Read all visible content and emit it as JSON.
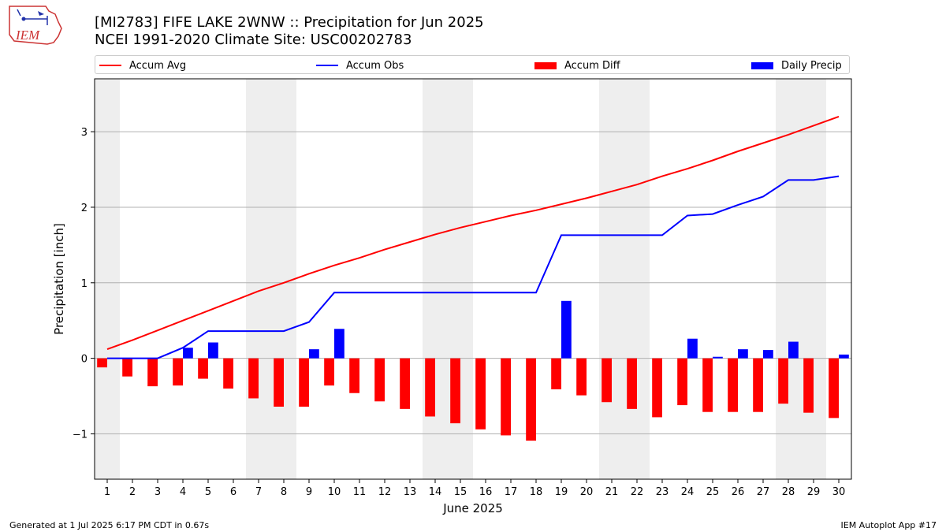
{
  "header": {
    "title": "[MI2783] FIFE LAKE 2WNW :: Precipitation for Jun 2025",
    "subtitle": "NCEI 1991-2020 Climate Site: USC00202783",
    "logo_text": "IEM"
  },
  "legend": [
    {
      "label": "Accum Avg",
      "kind": "line",
      "color": "#ff0000"
    },
    {
      "label": "Accum Obs",
      "kind": "line",
      "color": "#0000ff"
    },
    {
      "label": "Accum Diff",
      "kind": "bar",
      "color": "#ff0000"
    },
    {
      "label": "Daily Precip",
      "kind": "bar",
      "color": "#0000ff"
    }
  ],
  "chart_data": {
    "type": "bar",
    "xlabel": "June 2025",
    "ylabel": "Precipitation [inch]",
    "ylim": [
      -1.6,
      3.7
    ],
    "yticks": [
      -1,
      0,
      1,
      2,
      3
    ],
    "ytick_labels": [
      "−1",
      "0",
      "1",
      "2",
      "3"
    ],
    "grid": true,
    "weekend_shading": true,
    "weekend_days": [
      1,
      7,
      8,
      14,
      15,
      21,
      22,
      28,
      29
    ],
    "categories": [
      "1",
      "2",
      "3",
      "4",
      "5",
      "6",
      "7",
      "8",
      "9",
      "10",
      "11",
      "12",
      "13",
      "14",
      "15",
      "16",
      "17",
      "18",
      "19",
      "20",
      "21",
      "22",
      "23",
      "24",
      "25",
      "26",
      "27",
      "28",
      "29",
      "30"
    ],
    "series": [
      {
        "name": "Accum Avg",
        "type": "line",
        "color": "#ff0000",
        "values": [
          0.12,
          0.24,
          0.37,
          0.5,
          0.63,
          0.76,
          0.89,
          1.0,
          1.12,
          1.23,
          1.33,
          1.44,
          1.54,
          1.64,
          1.73,
          1.81,
          1.89,
          1.96,
          2.04,
          2.12,
          2.21,
          2.3,
          2.41,
          2.51,
          2.62,
          2.74,
          2.85,
          2.96,
          3.08,
          3.2
        ]
      },
      {
        "name": "Accum Obs",
        "type": "line",
        "color": "#0000ff",
        "values": [
          0.0,
          0.0,
          0.0,
          0.14,
          0.36,
          0.36,
          0.36,
          0.36,
          0.48,
          0.87,
          0.87,
          0.87,
          0.87,
          0.87,
          0.87,
          0.87,
          0.87,
          0.87,
          1.63,
          1.63,
          1.63,
          1.63,
          1.63,
          1.89,
          1.91,
          2.03,
          2.14,
          2.36,
          2.36,
          2.41
        ]
      },
      {
        "name": "Accum Diff",
        "type": "bar",
        "color": "#ff0000",
        "values": [
          -0.12,
          -0.24,
          -0.37,
          -0.36,
          -0.27,
          -0.4,
          -0.53,
          -0.64,
          -0.64,
          -0.36,
          -0.46,
          -0.57,
          -0.67,
          -0.77,
          -0.86,
          -0.94,
          -1.02,
          -1.09,
          -0.41,
          -0.49,
          -0.58,
          -0.67,
          -0.78,
          -0.62,
          -0.71,
          -0.71,
          -0.71,
          -0.6,
          -0.72,
          -0.79
        ]
      },
      {
        "name": "Daily Precip",
        "type": "bar",
        "color": "#0000ff",
        "values": [
          0.0,
          0.0,
          0.0,
          0.14,
          0.21,
          0.0,
          0.0,
          0.0,
          0.12,
          0.39,
          0.0,
          0.0,
          0.0,
          0.0,
          0.0,
          0.0,
          0.0,
          0.0,
          0.76,
          0.0,
          0.0,
          0.0,
          0.0,
          0.26,
          0.02,
          0.12,
          0.11,
          0.22,
          0.0,
          0.05
        ]
      }
    ]
  },
  "footer": {
    "generated": "Generated at 1 Jul 2025 6:17 PM CDT in 0.67s",
    "app": "IEM Autoplot App #17"
  }
}
